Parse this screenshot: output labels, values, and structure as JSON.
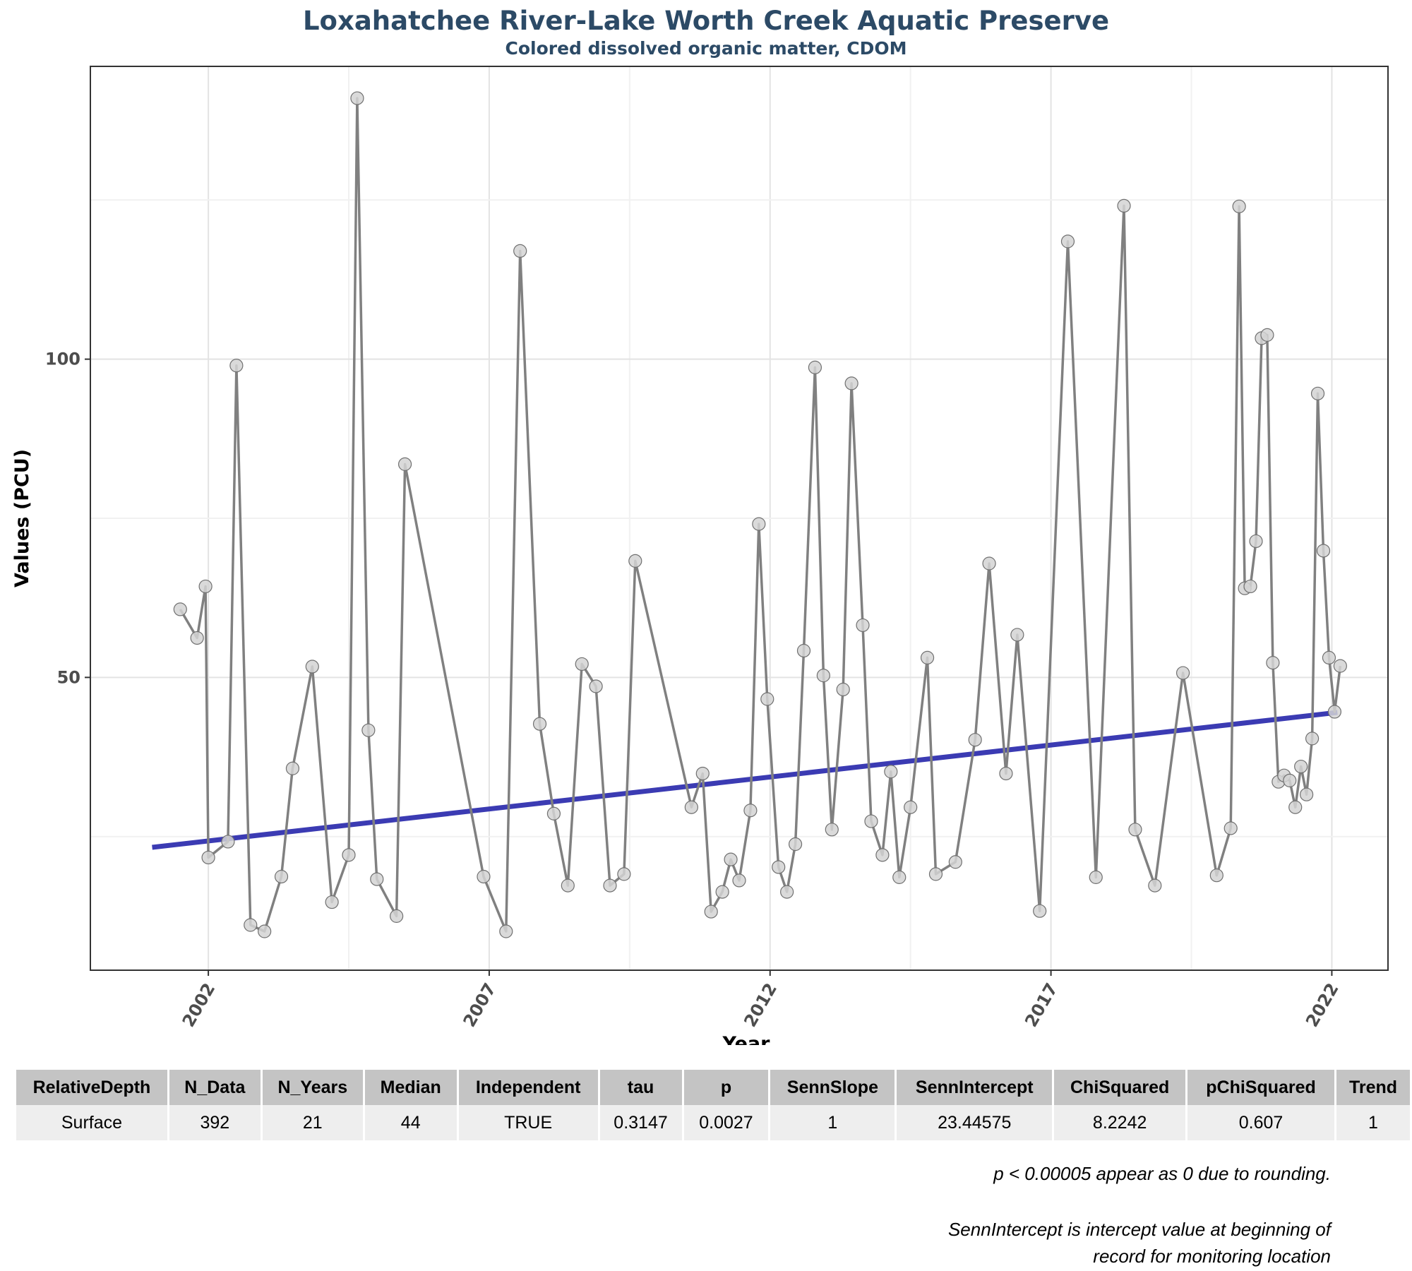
{
  "chart_data": {
    "type": "line",
    "title": "Loxahatchee River-Lake Worth Creek Aquatic Preserve",
    "subtitle": "Colored dissolved organic matter, CDOM",
    "xlabel": "Year",
    "ylabel": "Values (PCU)",
    "xlim": [
      1999.9,
      2023.0
    ],
    "ylim": [
      4,
      146
    ],
    "xticks": [
      "2002",
      "2007",
      "2012",
      "2017",
      "2022"
    ],
    "yticks": [
      "50",
      "100"
    ],
    "grid": true,
    "colors": {
      "series": "#808080",
      "points": "#d3d3d3",
      "trend": "#3b3bb3"
    },
    "series": [
      {
        "x": [
          2001.5,
          2001.8,
          2001.95,
          2002.0,
          2002.35,
          2002.5,
          2002.75,
          2003.0,
          2003.3,
          2003.5,
          2003.85,
          2004.2,
          2004.5,
          2004.65,
          2004.85,
          2005.0,
          2005.35,
          2005.5,
          2006.9,
          2007.3,
          2007.55,
          2007.9,
          2008.15,
          2008.4,
          2008.65,
          2008.9,
          2009.15,
          2009.4,
          2009.6,
          2010.6,
          2010.8,
          2010.95,
          2011.15,
          2011.3,
          2011.45,
          2011.65,
          2011.8,
          2011.95,
          2012.15,
          2012.3,
          2012.45,
          2012.6,
          2012.8,
          2012.95,
          2013.1,
          2013.3,
          2013.45,
          2013.65,
          2013.8,
          2014.0,
          2014.15,
          2014.3,
          2014.5,
          2014.8,
          2014.95,
          2015.3,
          2015.65,
          2015.9,
          2016.2,
          2016.4,
          2016.8,
          2017.3,
          2017.8,
          2018.3,
          2018.5,
          2018.85,
          2019.35,
          2019.95,
          2020.2,
          2020.35,
          2020.45,
          2020.55,
          2020.65,
          2020.75,
          2020.85,
          2020.95,
          2021.05,
          2021.15,
          2021.25,
          2021.35,
          2021.45,
          2021.55,
          2021.65,
          2021.75,
          2021.85,
          2021.95,
          2022.05,
          2022.15
        ],
        "y": [
          60.7,
          56.2,
          64.3,
          21.7,
          24.2,
          99,
          11.1,
          10.1,
          18.7,
          35.7,
          51.7,
          14.7,
          22.1,
          141,
          41.7,
          18.3,
          12.5,
          83.5,
          18.7,
          10.1,
          117,
          42.7,
          28.6,
          17.3,
          52.1,
          48.6,
          17.3,
          19.1,
          68.3,
          29.6,
          34.9,
          13.2,
          16.3,
          21.4,
          18.1,
          29.1,
          74.1,
          46.6,
          20.2,
          16.3,
          23.8,
          54.2,
          98.7,
          50.3,
          26.1,
          48.1,
          96.2,
          58.2,
          27.4,
          22.1,
          35.2,
          18.6,
          29.6,
          53.1,
          19.1,
          21.0,
          40.2,
          67.9,
          34.9,
          56.7,
          13.3,
          118.5,
          18.6,
          124.1,
          26.1,
          17.3,
          50.7,
          18.9,
          26.3,
          124,
          64.0,
          64.3,
          71.4,
          103.3,
          103.8,
          52.3,
          33.6,
          34.6,
          33.8,
          29.6,
          36.0,
          31.6,
          40.4,
          94.6,
          69.9,
          53.1,
          44.6,
          51.8
        ]
      }
    ],
    "trend_line": {
      "x": [
        2001.0,
        2022.1
      ],
      "y": [
        23.3,
        44.5
      ]
    }
  },
  "table": {
    "headers": [
      "RelativeDepth",
      "N_Data",
      "N_Years",
      "Median",
      "Independent",
      "tau",
      "p",
      "SennSlope",
      "SennIntercept",
      "ChiSquared",
      "pChiSquared",
      "Trend"
    ],
    "row": [
      "Surface",
      "392",
      "21",
      "44",
      "TRUE",
      "0.3147",
      "0.0027",
      "1",
      "23.44575",
      "8.2242",
      "0.607",
      "1"
    ]
  },
  "footnotes": {
    "note1": "p < 0.00005 appear as 0 due to rounding.",
    "note2_line1": "SennIntercept is intercept value at beginning of",
    "note2_line2": "record for monitoring location"
  }
}
